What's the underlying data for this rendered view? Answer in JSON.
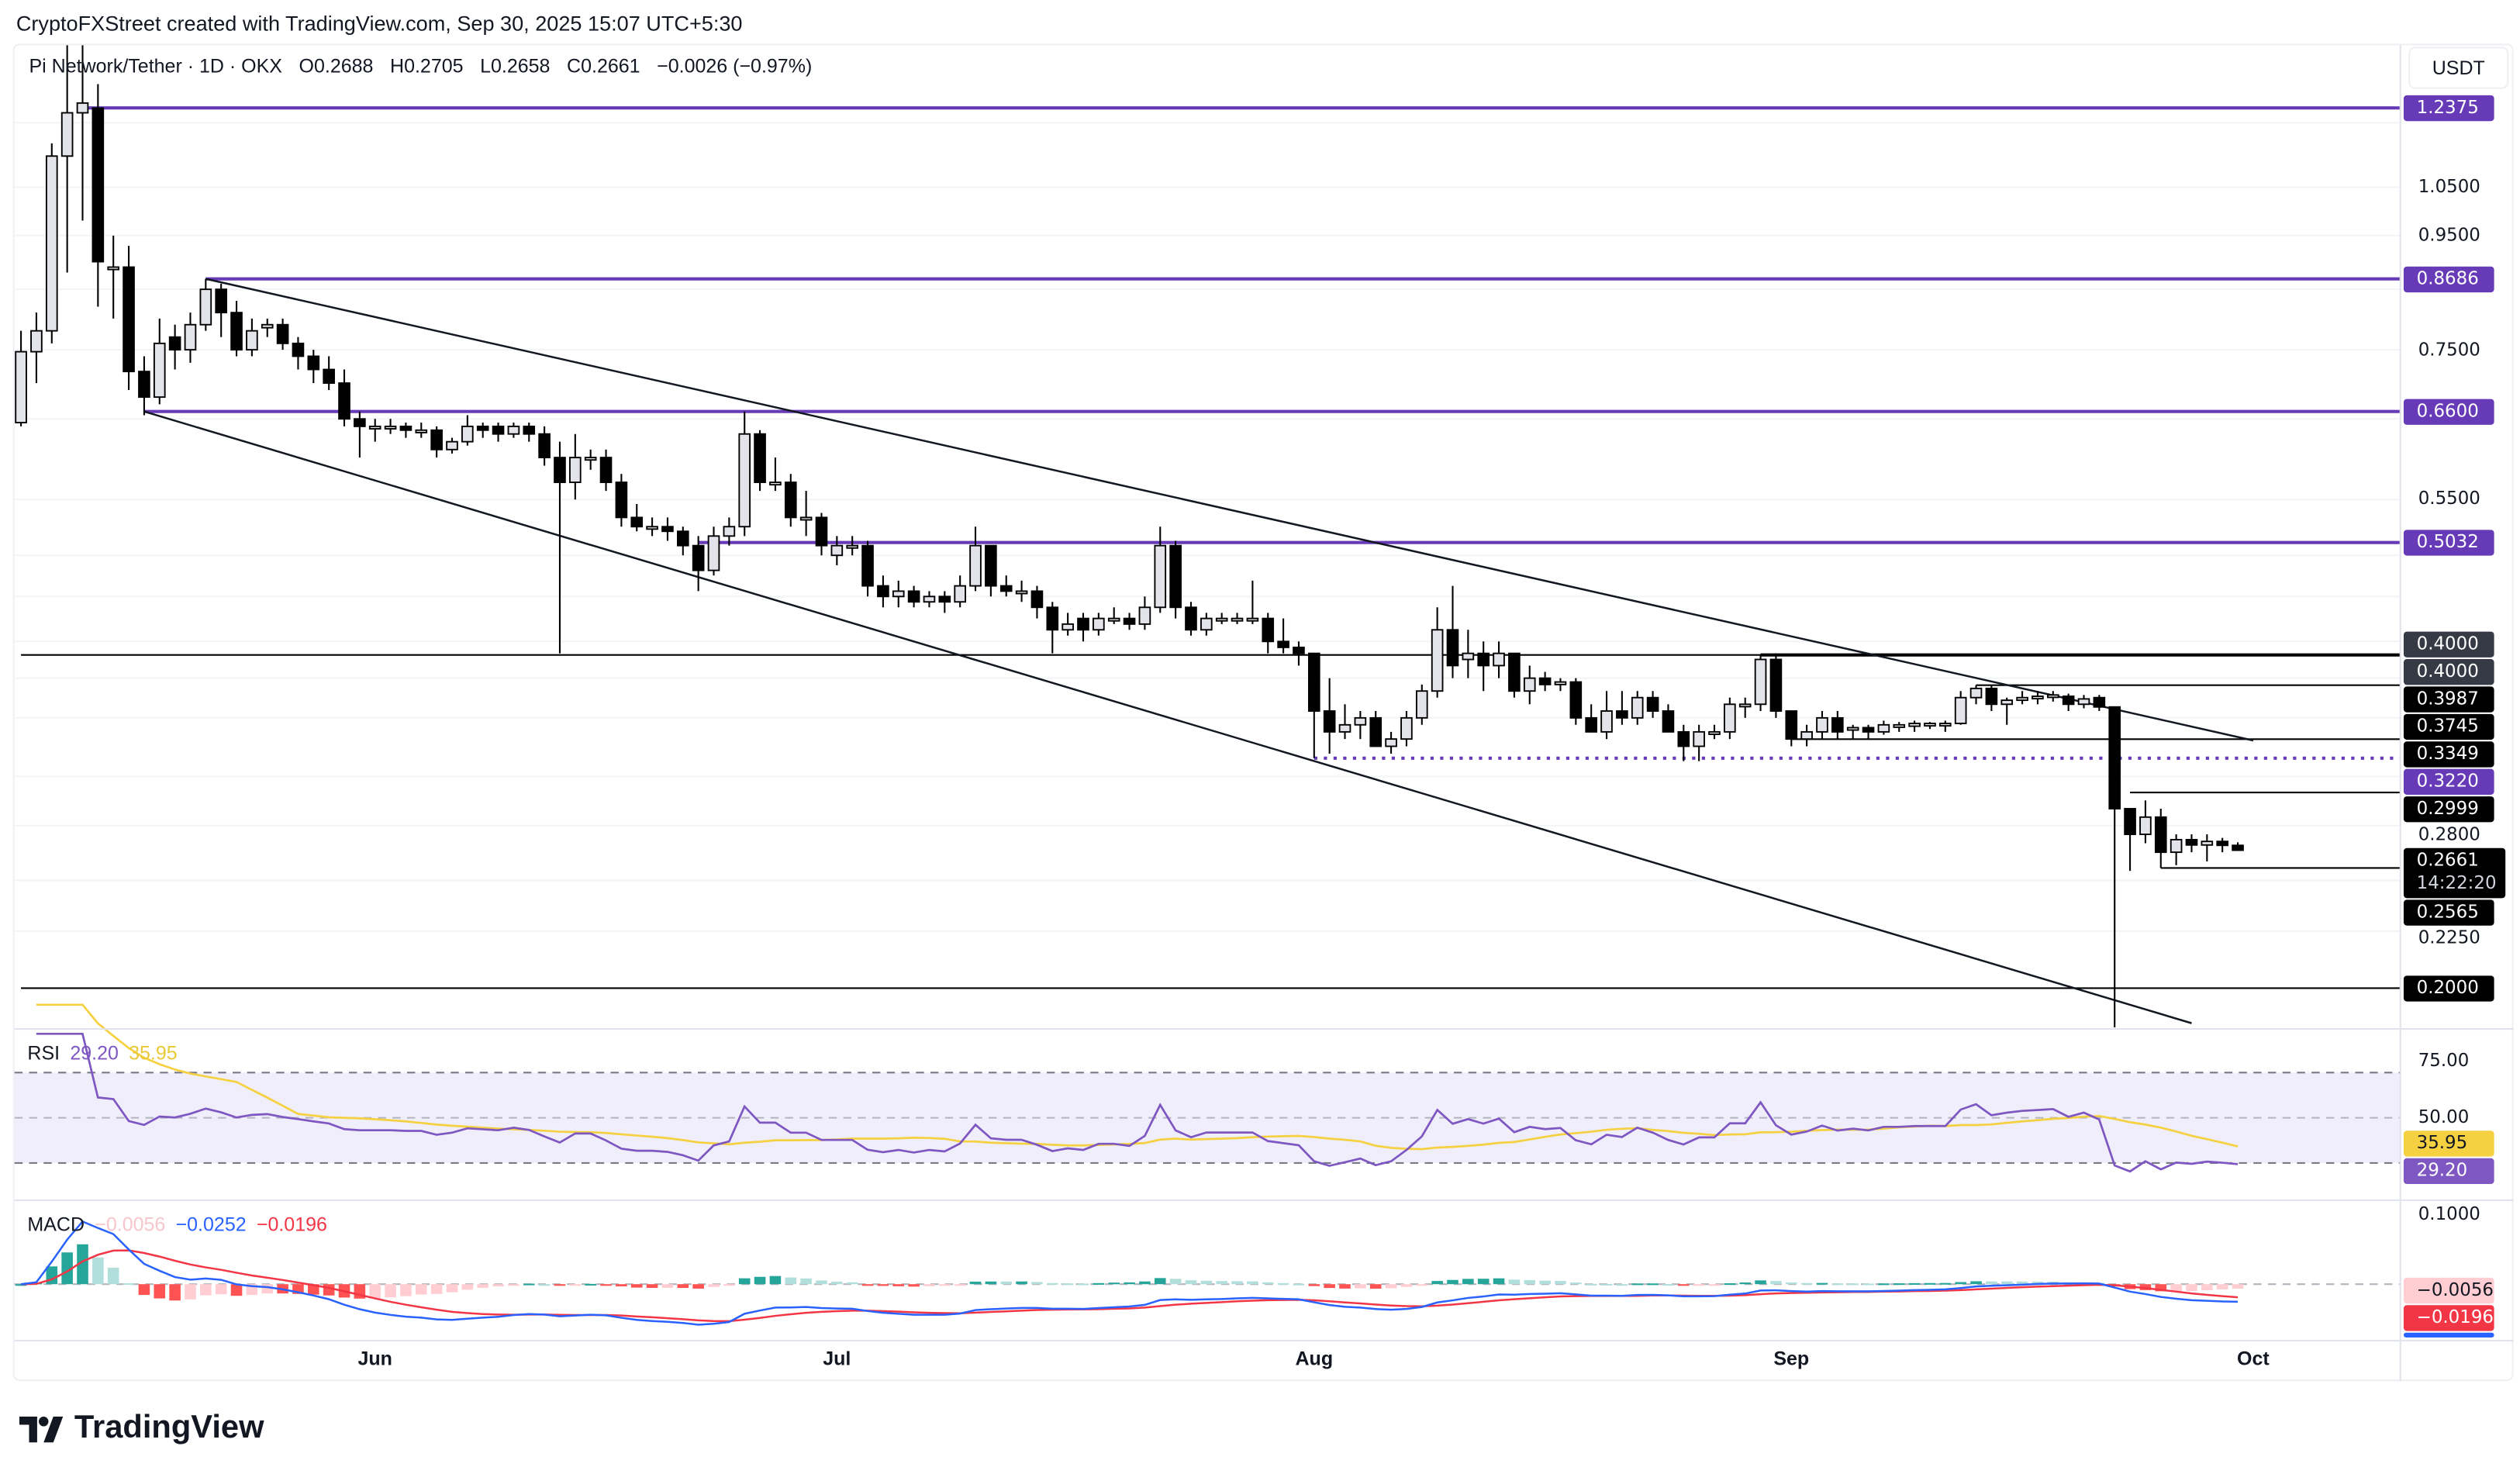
{
  "header": {
    "credit": "CryptoFXStreet created with TradingView.com, Sep 30, 2025 15:07 UTC+5:30"
  },
  "legend": {
    "symbol": "Pi Network/Tether · 1D · OKX",
    "open": "O0.2688",
    "high": "H0.2705",
    "low": "L0.2658",
    "close": "C0.2661",
    "change": "−0.0026 (−0.97%)"
  },
  "price_axis": {
    "unit_button": "USDT",
    "ticks": [
      "1.0500",
      "0.9500",
      "0.7500",
      "0.5500",
      "0.2800",
      "0.2250"
    ],
    "grid_prices": [
      1.2,
      1.05,
      0.95,
      0.85,
      0.75,
      0.65,
      0.55,
      0.49,
      0.45,
      0.41,
      0.38,
      0.35,
      0.31,
      0.28,
      0.25,
      0.225
    ],
    "scale": "log",
    "badges": [
      {
        "price": 1.2375,
        "label": "1.2375",
        "kind": "purple"
      },
      {
        "price": 0.8686,
        "label": "0.8686",
        "kind": "purple"
      },
      {
        "price": 0.66,
        "label": "0.6600",
        "kind": "purple"
      },
      {
        "price": 0.5032,
        "label": "0.5032",
        "kind": "purple"
      },
      {
        "price": 0.4075,
        "label": "0.4000",
        "kind": "gray"
      },
      {
        "price": 0.4005,
        "label": "0.4000",
        "kind": "gray"
      },
      {
        "price": 0.3987,
        "label": "0.3987",
        "kind": "black"
      },
      {
        "price": 0.3745,
        "label": "0.3745",
        "kind": "black"
      },
      {
        "price": 0.3349,
        "label": "0.3349",
        "kind": "black"
      },
      {
        "price": 0.322,
        "label": "0.3220",
        "kind": "purple"
      },
      {
        "price": 0.2999,
        "label": "0.2999",
        "kind": "black"
      },
      {
        "price": 0.2565,
        "label": "0.2565",
        "kind": "black"
      },
      {
        "price": 0.2,
        "label": "0.2000",
        "kind": "black"
      }
    ],
    "current": {
      "price": 0.2661,
      "label": "0.2661",
      "countdown": "14:22:20"
    }
  },
  "time_axis": [
    {
      "date": "2025-06-01",
      "label": "Jun"
    },
    {
      "date": "2025-07-01",
      "label": "Jul"
    },
    {
      "date": "2025-08-01",
      "label": "Aug"
    },
    {
      "date": "2025-09-01",
      "label": "Sep"
    },
    {
      "date": "2025-10-01",
      "label": "Oct"
    }
  ],
  "colors": {
    "purple": "#673ab7",
    "gray_badge": "#363a45",
    "black_badge": "#000000",
    "bull_fill": "#e3e3ea",
    "bear_fill": "#000000",
    "rsi": "#7e57c2",
    "rsi_ma": "#f5d142",
    "rsi_band": "#f0eefa",
    "macd": "#2962ff",
    "signal": "#f23645",
    "hist_up_strong": "#26a69a",
    "hist_up_weak": "#b2dfdb",
    "hist_down_strong": "#ff5252",
    "hist_down_weak": "#ffcdd2"
  },
  "chart_data": {
    "type": "candlestick",
    "title": "Pi Network/Tether · 1D · OKX",
    "y_scale": "log",
    "columns": [
      "date",
      "open",
      "high",
      "low",
      "close"
    ],
    "candles": [
      [
        "2025-05-09",
        0.645,
        0.78,
        0.64,
        0.747
      ],
      [
        "2025-05-10",
        0.747,
        0.81,
        0.7,
        0.78
      ],
      [
        "2025-05-11",
        0.78,
        1.15,
        0.76,
        1.12
      ],
      [
        "2025-05-12",
        1.12,
        1.45,
        0.88,
        1.225
      ],
      [
        "2025-05-13",
        1.225,
        1.45,
        0.98,
        1.25
      ],
      [
        "2025-05-14",
        1.237,
        1.3,
        0.82,
        0.9
      ],
      [
        "2025-05-15",
        0.89,
        0.95,
        0.8,
        0.89
      ],
      [
        "2025-05-16",
        0.89,
        0.93,
        0.69,
        0.717
      ],
      [
        "2025-05-17",
        0.717,
        0.74,
        0.655,
        0.68
      ],
      [
        "2025-05-18",
        0.68,
        0.8,
        0.67,
        0.76
      ],
      [
        "2025-05-19",
        0.77,
        0.79,
        0.72,
        0.75
      ],
      [
        "2025-05-20",
        0.75,
        0.81,
        0.73,
        0.79
      ],
      [
        "2025-05-21",
        0.79,
        0.8686,
        0.78,
        0.85
      ],
      [
        "2025-05-22",
        0.85,
        0.86,
        0.77,
        0.81
      ],
      [
        "2025-05-23",
        0.81,
        0.83,
        0.74,
        0.75
      ],
      [
        "2025-05-24",
        0.75,
        0.8,
        0.74,
        0.78
      ],
      [
        "2025-05-25",
        0.785,
        0.8,
        0.77,
        0.79
      ],
      [
        "2025-05-26",
        0.79,
        0.8,
        0.75,
        0.76
      ],
      [
        "2025-05-27",
        0.76,
        0.77,
        0.72,
        0.74
      ],
      [
        "2025-05-28",
        0.74,
        0.75,
        0.7,
        0.72
      ],
      [
        "2025-05-29",
        0.72,
        0.74,
        0.69,
        0.7
      ],
      [
        "2025-05-30",
        0.7,
        0.72,
        0.64,
        0.65
      ],
      [
        "2025-05-31",
        0.65,
        0.66,
        0.6,
        0.64
      ],
      [
        "2025-06-01",
        0.64,
        0.65,
        0.62,
        0.64
      ],
      [
        "2025-06-02",
        0.64,
        0.65,
        0.63,
        0.64
      ],
      [
        "2025-06-03",
        0.64,
        0.645,
        0.625,
        0.635
      ],
      [
        "2025-06-04",
        0.635,
        0.645,
        0.625,
        0.635
      ],
      [
        "2025-06-05",
        0.635,
        0.64,
        0.6,
        0.61
      ],
      [
        "2025-06-06",
        0.61,
        0.625,
        0.605,
        0.62
      ],
      [
        "2025-06-07",
        0.62,
        0.655,
        0.615,
        0.64
      ],
      [
        "2025-06-08",
        0.64,
        0.645,
        0.625,
        0.635
      ],
      [
        "2025-06-09",
        0.64,
        0.645,
        0.62,
        0.63
      ],
      [
        "2025-06-10",
        0.63,
        0.645,
        0.625,
        0.64
      ],
      [
        "2025-06-11",
        0.64,
        0.645,
        0.62,
        0.63
      ],
      [
        "2025-06-12",
        0.63,
        0.64,
        0.59,
        0.6
      ],
      [
        "2025-06-13",
        0.6,
        0.62,
        0.4,
        0.57
      ],
      [
        "2025-06-14",
        0.57,
        0.63,
        0.55,
        0.6
      ],
      [
        "2025-06-15",
        0.6,
        0.61,
        0.585,
        0.6
      ],
      [
        "2025-06-16",
        0.6,
        0.61,
        0.56,
        0.57
      ],
      [
        "2025-06-17",
        0.57,
        0.58,
        0.52,
        0.53
      ],
      [
        "2025-06-18",
        0.53,
        0.545,
        0.515,
        0.52
      ],
      [
        "2025-06-19",
        0.52,
        0.53,
        0.51,
        0.52
      ],
      [
        "2025-06-20",
        0.52,
        0.53,
        0.505,
        0.515
      ],
      [
        "2025-06-21",
        0.515,
        0.52,
        0.49,
        0.5
      ],
      [
        "2025-06-22",
        0.5,
        0.51,
        0.455,
        0.475
      ],
      [
        "2025-06-23",
        0.475,
        0.52,
        0.47,
        0.51
      ],
      [
        "2025-06-24",
        0.51,
        0.53,
        0.5,
        0.52
      ],
      [
        "2025-06-25",
        0.52,
        0.66,
        0.51,
        0.63
      ],
      [
        "2025-06-26",
        0.63,
        0.635,
        0.56,
        0.57
      ],
      [
        "2025-06-27",
        0.57,
        0.6,
        0.56,
        0.57
      ],
      [
        "2025-06-28",
        0.57,
        0.58,
        0.52,
        0.53
      ],
      [
        "2025-06-29",
        0.53,
        0.56,
        0.51,
        0.53
      ],
      [
        "2025-06-30",
        0.53,
        0.535,
        0.49,
        0.5
      ],
      [
        "2025-07-01",
        0.49,
        0.51,
        0.48,
        0.5
      ],
      [
        "2025-07-02",
        0.5,
        0.51,
        0.49,
        0.5
      ],
      [
        "2025-07-03",
        0.5,
        0.505,
        0.45,
        0.46
      ],
      [
        "2025-07-04",
        0.46,
        0.47,
        0.44,
        0.45
      ],
      [
        "2025-07-05",
        0.45,
        0.465,
        0.44,
        0.455
      ],
      [
        "2025-07-06",
        0.455,
        0.46,
        0.44,
        0.445
      ],
      [
        "2025-07-07",
        0.445,
        0.455,
        0.44,
        0.45
      ],
      [
        "2025-07-08",
        0.45,
        0.455,
        0.435,
        0.445
      ],
      [
        "2025-07-09",
        0.445,
        0.47,
        0.44,
        0.46
      ],
      [
        "2025-07-10",
        0.46,
        0.52,
        0.455,
        0.5
      ],
      [
        "2025-07-11",
        0.5,
        0.5,
        0.45,
        0.46
      ],
      [
        "2025-07-12",
        0.46,
        0.47,
        0.45,
        0.455
      ],
      [
        "2025-07-13",
        0.455,
        0.465,
        0.445,
        0.455
      ],
      [
        "2025-07-14",
        0.455,
        0.46,
        0.43,
        0.44
      ],
      [
        "2025-07-15",
        0.44,
        0.445,
        0.4,
        0.42
      ],
      [
        "2025-07-16",
        0.42,
        0.435,
        0.415,
        0.425
      ],
      [
        "2025-07-17",
        0.43,
        0.435,
        0.41,
        0.42
      ],
      [
        "2025-07-18",
        0.42,
        0.435,
        0.415,
        0.43
      ],
      [
        "2025-07-19",
        0.43,
        0.44,
        0.425,
        0.43
      ],
      [
        "2025-07-20",
        0.43,
        0.435,
        0.42,
        0.425
      ],
      [
        "2025-07-21",
        0.425,
        0.45,
        0.42,
        0.44
      ],
      [
        "2025-07-22",
        0.44,
        0.52,
        0.435,
        0.5
      ],
      [
        "2025-07-23",
        0.5,
        0.505,
        0.43,
        0.44
      ],
      [
        "2025-07-24",
        0.44,
        0.445,
        0.415,
        0.42
      ],
      [
        "2025-07-25",
        0.42,
        0.435,
        0.415,
        0.43
      ],
      [
        "2025-07-26",
        0.43,
        0.435,
        0.425,
        0.43
      ],
      [
        "2025-07-27",
        0.43,
        0.435,
        0.425,
        0.43
      ],
      [
        "2025-07-28",
        0.43,
        0.465,
        0.425,
        0.43
      ],
      [
        "2025-07-29",
        0.43,
        0.435,
        0.4,
        0.41
      ],
      [
        "2025-07-30",
        0.41,
        0.43,
        0.4,
        0.405
      ],
      [
        "2025-07-31",
        0.405,
        0.41,
        0.39,
        0.4
      ],
      [
        "2025-08-01",
        0.4,
        0.4,
        0.322,
        0.355
      ],
      [
        "2025-08-02",
        0.355,
        0.38,
        0.325,
        0.34
      ],
      [
        "2025-08-03",
        0.34,
        0.36,
        0.335,
        0.345
      ],
      [
        "2025-08-04",
        0.345,
        0.355,
        0.335,
        0.35
      ],
      [
        "2025-08-05",
        0.35,
        0.355,
        0.33,
        0.33
      ],
      [
        "2025-08-06",
        0.33,
        0.34,
        0.325,
        0.335
      ],
      [
        "2025-08-07",
        0.335,
        0.355,
        0.33,
        0.35
      ],
      [
        "2025-08-08",
        0.35,
        0.375,
        0.345,
        0.37
      ],
      [
        "2025-08-09",
        0.37,
        0.44,
        0.365,
        0.42
      ],
      [
        "2025-08-10",
        0.42,
        0.46,
        0.38,
        0.39
      ],
      [
        "2025-08-11",
        0.395,
        0.42,
        0.38,
        0.4
      ],
      [
        "2025-08-12",
        0.4,
        0.41,
        0.37,
        0.39
      ],
      [
        "2025-08-13",
        0.39,
        0.41,
        0.38,
        0.4
      ],
      [
        "2025-08-14",
        0.4,
        0.4,
        0.365,
        0.37
      ],
      [
        "2025-08-15",
        0.37,
        0.39,
        0.36,
        0.38
      ],
      [
        "2025-08-16",
        0.38,
        0.385,
        0.37,
        0.375
      ],
      [
        "2025-08-17",
        0.375,
        0.38,
        0.37,
        0.377
      ],
      [
        "2025-08-18",
        0.377,
        0.38,
        0.345,
        0.35
      ],
      [
        "2025-08-19",
        0.35,
        0.36,
        0.34,
        0.34
      ],
      [
        "2025-08-20",
        0.34,
        0.37,
        0.335,
        0.355
      ],
      [
        "2025-08-21",
        0.355,
        0.37,
        0.345,
        0.35
      ],
      [
        "2025-08-22",
        0.35,
        0.37,
        0.345,
        0.365
      ],
      [
        "2025-08-23",
        0.365,
        0.37,
        0.35,
        0.355
      ],
      [
        "2025-08-24",
        0.355,
        0.36,
        0.34,
        0.34
      ],
      [
        "2025-08-25",
        0.34,
        0.345,
        0.32,
        0.33
      ],
      [
        "2025-08-26",
        0.33,
        0.345,
        0.32,
        0.34
      ],
      [
        "2025-08-27",
        0.34,
        0.345,
        0.335,
        0.34
      ],
      [
        "2025-08-28",
        0.34,
        0.365,
        0.335,
        0.36
      ],
      [
        "2025-08-29",
        0.36,
        0.365,
        0.35,
        0.36
      ],
      [
        "2025-08-30",
        0.36,
        0.3987,
        0.355,
        0.395
      ],
      [
        "2025-08-31",
        0.395,
        0.4,
        0.35,
        0.355
      ],
      [
        "2025-09-01",
        0.355,
        0.355,
        0.33,
        0.335
      ],
      [
        "2025-09-02",
        0.335,
        0.345,
        0.33,
        0.34
      ],
      [
        "2025-09-03",
        0.34,
        0.355,
        0.335,
        0.35
      ],
      [
        "2025-09-04",
        0.35,
        0.355,
        0.335,
        0.34
      ],
      [
        "2025-09-05",
        0.342,
        0.345,
        0.335,
        0.343
      ],
      [
        "2025-09-06",
        0.343,
        0.345,
        0.335,
        0.34
      ],
      [
        "2025-09-07",
        0.34,
        0.348,
        0.338,
        0.345
      ],
      [
        "2025-09-08",
        0.344,
        0.347,
        0.34,
        0.345
      ],
      [
        "2025-09-09",
        0.344,
        0.348,
        0.34,
        0.346
      ],
      [
        "2025-09-10",
        0.345,
        0.347,
        0.342,
        0.346
      ],
      [
        "2025-09-11",
        0.345,
        0.348,
        0.34,
        0.346
      ],
      [
        "2025-09-12",
        0.346,
        0.37,
        0.345,
        0.365
      ],
      [
        "2025-09-13",
        0.365,
        0.3745,
        0.36,
        0.372
      ],
      [
        "2025-09-14",
        0.372,
        0.3745,
        0.355,
        0.36
      ],
      [
        "2025-09-15",
        0.36,
        0.365,
        0.345,
        0.363
      ],
      [
        "2025-09-16",
        0.363,
        0.37,
        0.36,
        0.365
      ],
      [
        "2025-09-17",
        0.365,
        0.37,
        0.36,
        0.366
      ],
      [
        "2025-09-18",
        0.366,
        0.37,
        0.362,
        0.367
      ],
      [
        "2025-09-19",
        0.366,
        0.368,
        0.355,
        0.36
      ],
      [
        "2025-09-20",
        0.36,
        0.367,
        0.357,
        0.364
      ],
      [
        "2025-09-21",
        0.365,
        0.367,
        0.355,
        0.358
      ],
      [
        "2025-09-22",
        0.358,
        0.358,
        0.1842,
        0.29
      ],
      [
        "2025-09-23",
        0.29,
        0.29,
        0.255,
        0.275
      ],
      [
        "2025-09-24",
        0.275,
        0.295,
        0.27,
        0.285
      ],
      [
        "2025-09-25",
        0.285,
        0.29,
        0.2565,
        0.265
      ],
      [
        "2025-09-26",
        0.265,
        0.275,
        0.258,
        0.272
      ],
      [
        "2025-09-27",
        0.272,
        0.275,
        0.265,
        0.269
      ],
      [
        "2025-09-28",
        0.269,
        0.275,
        0.26,
        0.271
      ],
      [
        "2025-09-29",
        0.271,
        0.273,
        0.265,
        0.2688
      ],
      [
        "2025-09-30",
        0.2688,
        0.2705,
        0.2658,
        0.2661
      ]
    ],
    "levels": [
      {
        "price": 1.2375,
        "from": "2025-05-13",
        "kind": "purple",
        "style": "solid"
      },
      {
        "price": 0.8686,
        "from": "2025-05-21",
        "kind": "purple",
        "style": "solid"
      },
      {
        "price": 0.66,
        "from": "2025-05-17",
        "kind": "purple",
        "style": "solid"
      },
      {
        "price": 0.5032,
        "from": "2025-06-22",
        "kind": "purple",
        "style": "solid"
      },
      {
        "price": 0.3987,
        "from": "2025-05-09",
        "kind": "black",
        "style": "solid"
      },
      {
        "price": 0.3987,
        "from": "2025-08-30",
        "kind": "black",
        "style": "thick"
      },
      {
        "price": 0.3745,
        "from": "2025-09-13",
        "kind": "black",
        "style": "solid"
      },
      {
        "price": 0.3349,
        "from": "2025-09-01",
        "kind": "black",
        "style": "solid"
      },
      {
        "price": 0.322,
        "from": "2025-08-01",
        "kind": "purple",
        "style": "dotted"
      },
      {
        "price": 0.2999,
        "from": "2025-09-23",
        "kind": "black",
        "style": "solid"
      },
      {
        "price": 0.2565,
        "from": "2025-09-25",
        "kind": "black",
        "style": "solid"
      },
      {
        "price": 0.2,
        "from": "2025-05-09",
        "kind": "black",
        "style": "solid"
      }
    ],
    "trendlines": [
      {
        "from": [
          "2025-05-21",
          0.8686
        ],
        "to": [
          "2025-10-01",
          0.334
        ]
      },
      {
        "from": [
          "2025-05-17",
          0.66
        ],
        "to": [
          "2025-09-27",
          0.186
        ]
      }
    ]
  },
  "rsi": {
    "label": "RSI",
    "value": "29.20",
    "ma_value": "35.95",
    "axis": [
      {
        "v": 75,
        "label": "75.00"
      },
      {
        "v": 50,
        "label": "50.00"
      }
    ],
    "bands": [
      70,
      50,
      30
    ]
  },
  "macd": {
    "label": "MACD",
    "hist_value": "−0.0056",
    "macd_value": "−0.0252",
    "signal_value": "−0.0196",
    "axis": [
      {
        "v": 0.1,
        "label": "0.1000"
      }
    ]
  },
  "footer": {
    "logo_text": "TradingView"
  }
}
